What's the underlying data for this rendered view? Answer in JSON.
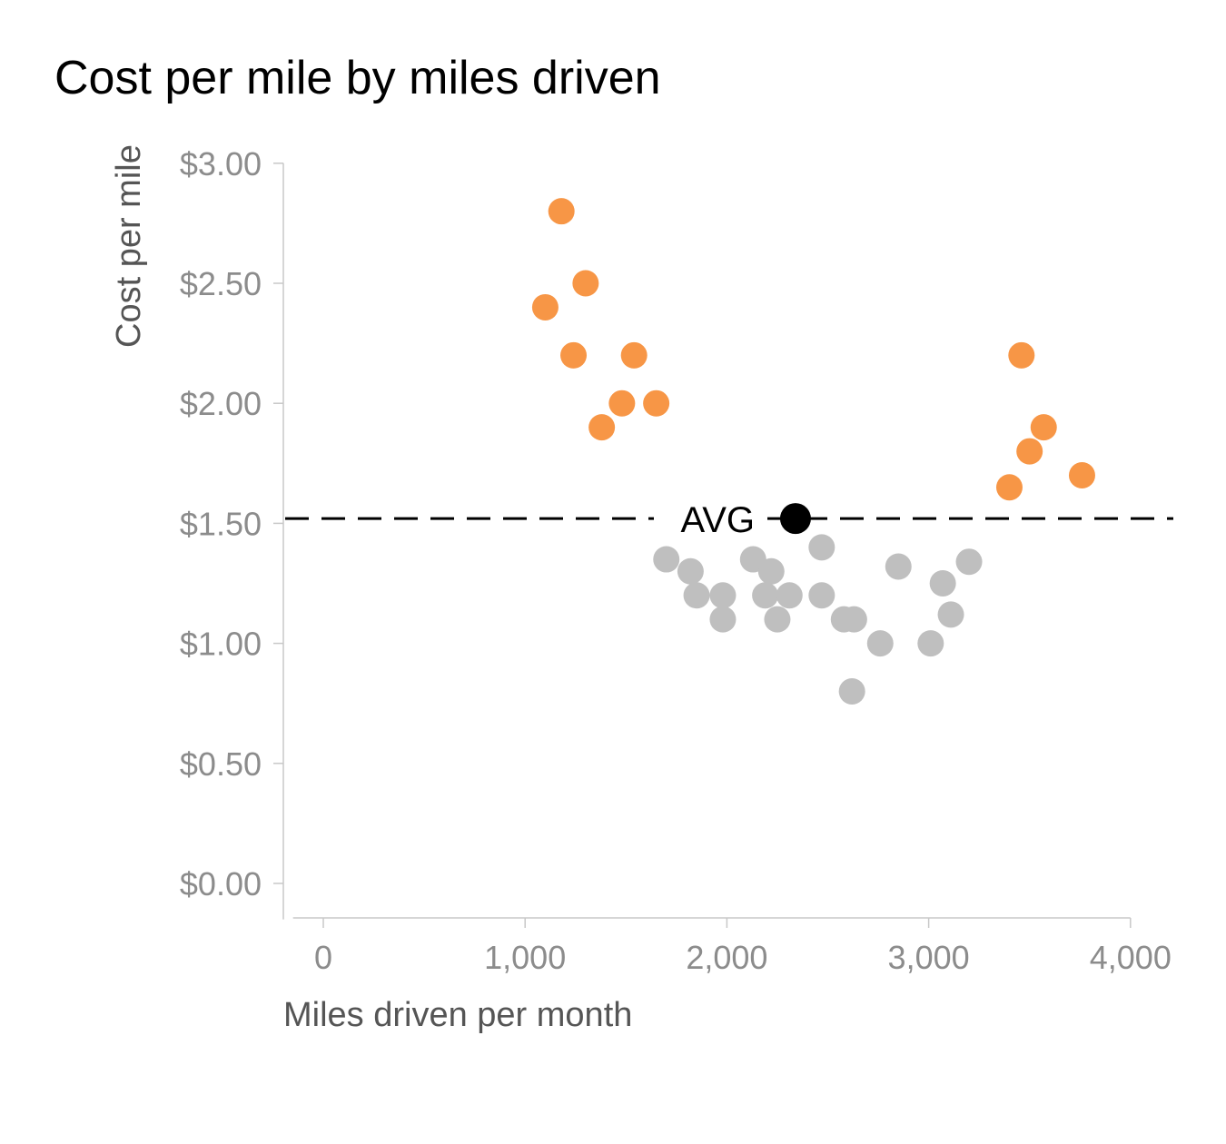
{
  "chart_data": {
    "type": "scatter",
    "title": "Cost per mile by miles driven",
    "xlabel": "Miles driven per month",
    "ylabel": "Cost per mile",
    "xlim": [
      -150,
      4000
    ],
    "ylim": [
      -0.15,
      3.0
    ],
    "x_ticks": [
      0,
      1000,
      2000,
      3000,
      4000
    ],
    "x_tick_labels": [
      "0",
      "1,000",
      "2,000",
      "3,000",
      "4,000"
    ],
    "y_ticks": [
      0,
      0.5,
      1.0,
      1.5,
      2.0,
      2.5,
      3.0
    ],
    "y_tick_labels": [
      "$0.00",
      "$0.50",
      "$1.00",
      "$1.50",
      "$2.00",
      "$2.50",
      "$3.00"
    ],
    "grid": false,
    "average": {
      "label": "AVG",
      "x": 2340,
      "y": 1.52
    },
    "colors": {
      "above_average": "#F79646",
      "below_average": "#BFBFBF",
      "average": "#000000"
    },
    "series": [
      {
        "color": "#F79646",
        "points": [
          {
            "x": 1180,
            "y": 2.8
          },
          {
            "x": 1300,
            "y": 2.5
          },
          {
            "x": 1100,
            "y": 2.4
          },
          {
            "x": 1240,
            "y": 2.2
          },
          {
            "x": 1540,
            "y": 2.2
          },
          {
            "x": 1480,
            "y": 2.0
          },
          {
            "x": 1650,
            "y": 2.0
          },
          {
            "x": 1380,
            "y": 1.9
          },
          {
            "x": 3460,
            "y": 2.2
          },
          {
            "x": 3570,
            "y": 1.9
          },
          {
            "x": 3500,
            "y": 1.8
          },
          {
            "x": 3760,
            "y": 1.7
          },
          {
            "x": 3400,
            "y": 1.65
          }
        ]
      },
      {
        "color": "#BFBFBF",
        "points": [
          {
            "x": 1700,
            "y": 1.35
          },
          {
            "x": 1820,
            "y": 1.3
          },
          {
            "x": 1850,
            "y": 1.2
          },
          {
            "x": 1980,
            "y": 1.2
          },
          {
            "x": 1980,
            "y": 1.1
          },
          {
            "x": 2130,
            "y": 1.35
          },
          {
            "x": 2220,
            "y": 1.3
          },
          {
            "x": 2190,
            "y": 1.2
          },
          {
            "x": 2310,
            "y": 1.2
          },
          {
            "x": 2250,
            "y": 1.1
          },
          {
            "x": 2470,
            "y": 1.4
          },
          {
            "x": 2470,
            "y": 1.2
          },
          {
            "x": 2580,
            "y": 1.1
          },
          {
            "x": 2630,
            "y": 1.1
          },
          {
            "x": 2620,
            "y": 0.8
          },
          {
            "x": 2760,
            "y": 1.0
          },
          {
            "x": 2850,
            "y": 1.32
          },
          {
            "x": 3010,
            "y": 1.0
          },
          {
            "x": 3070,
            "y": 1.25
          },
          {
            "x": 3110,
            "y": 1.12
          },
          {
            "x": 3200,
            "y": 1.34
          }
        ]
      }
    ]
  }
}
